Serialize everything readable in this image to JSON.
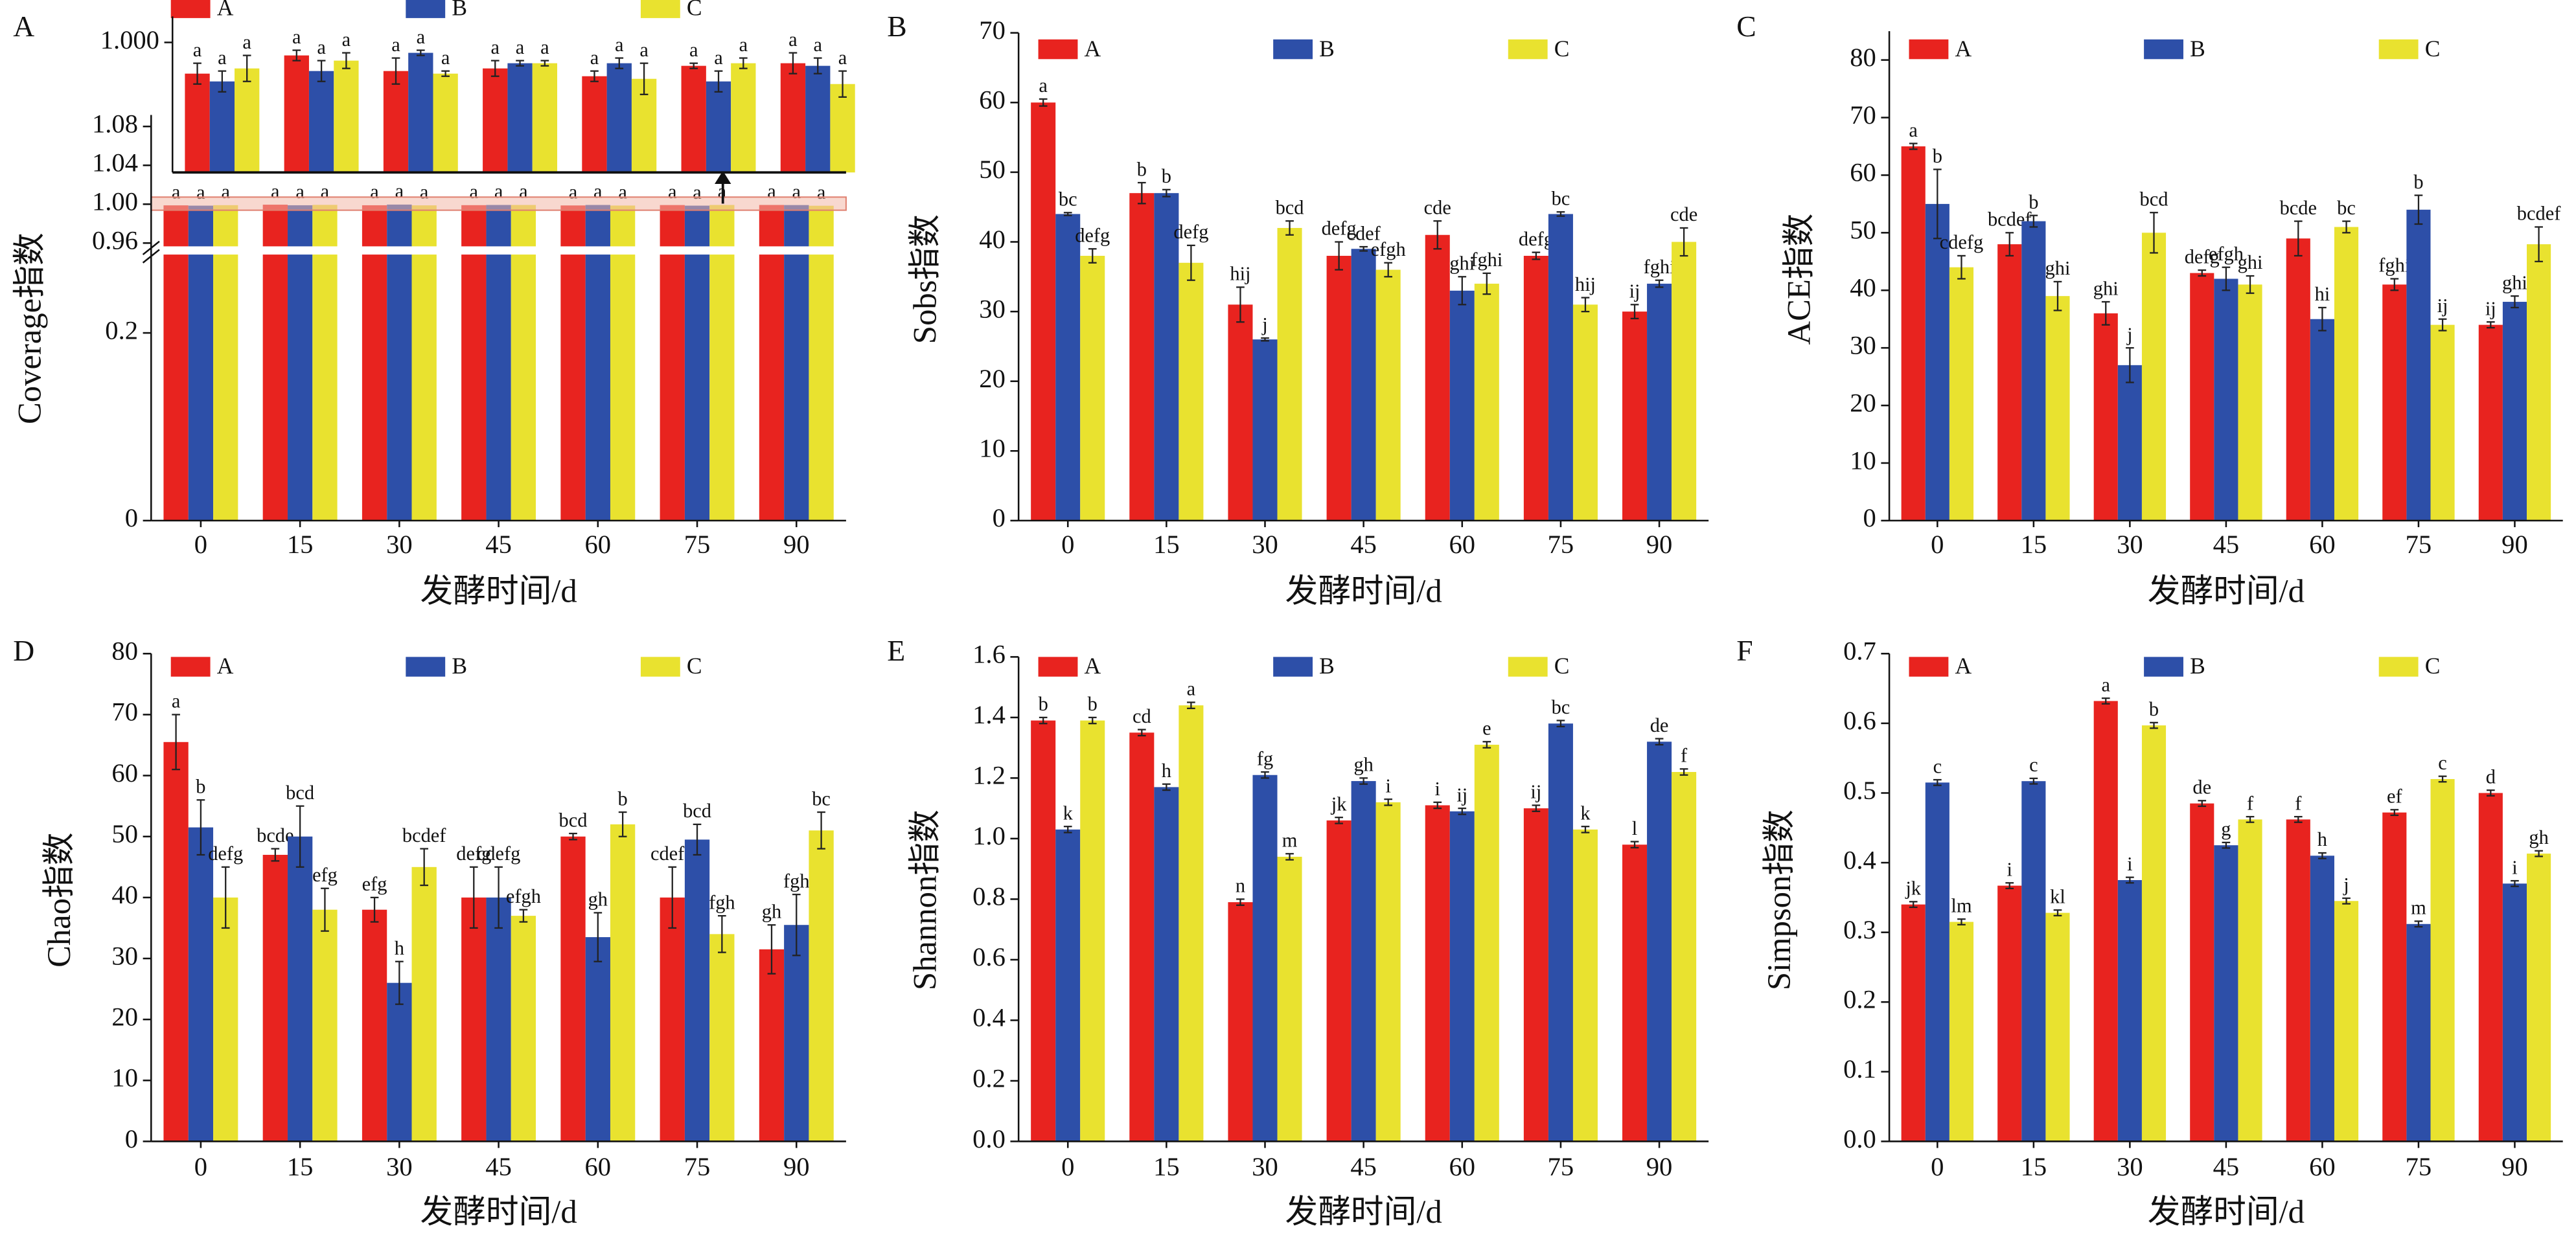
{
  "chart_data": [
    {
      "panel": "A",
      "type": "bar",
      "ylabel": "Coverage指数",
      "xlabel": "发酵时间/d",
      "categories": [
        "0",
        "15",
        "30",
        "45",
        "60",
        "75",
        "90"
      ],
      "ylim": [
        0,
        1.08
      ],
      "axis_break": [
        0.28,
        0.96
      ],
      "yticks": [
        0,
        0.2,
        0.96,
        {
          "value": 1,
          "label": "1.00"
        },
        1.04,
        1.08
      ],
      "inset": {
        "ylim": [
          0.995,
          1.001
        ],
        "yticks": [
          {
            "value": 1,
            "label": "1.000"
          }
        ]
      },
      "series": [
        {
          "name": "A",
          "color": "#e8231f",
          "values": [
            0.9988,
            0.9995,
            0.9989,
            0.999,
            0.9987,
            0.9991,
            0.9992
          ],
          "errors": [
            0.0004,
            0.0002,
            0.0005,
            0.0003,
            0.0002,
            0.0001,
            0.0004
          ],
          "labels": [
            "a",
            "a",
            "a",
            "a",
            "a",
            "a",
            "a"
          ]
        },
        {
          "name": "B",
          "color": "#2d4fa8",
          "values": [
            0.9985,
            0.9989,
            0.9996,
            0.9992,
            0.9992,
            0.9985,
            0.9991
          ],
          "errors": [
            0.0004,
            0.0004,
            0.0001,
            0.0001,
            0.0002,
            0.0004,
            0.0003
          ],
          "labels": [
            "a",
            "a",
            "a",
            "a",
            "a",
            "a",
            "a"
          ]
        },
        {
          "name": "C",
          "color": "#e9e22f",
          "values": [
            0.999,
            0.9993,
            0.9988,
            0.9992,
            0.9986,
            0.9992,
            0.9984
          ],
          "errors": [
            0.0005,
            0.0003,
            0.0001,
            0.0001,
            0.0006,
            0.0002,
            0.0005
          ],
          "labels": [
            "a",
            "a",
            "a",
            "a",
            "a",
            "a",
            "a"
          ]
        }
      ]
    },
    {
      "panel": "B",
      "type": "bar",
      "ylabel": "Sobs指数",
      "xlabel": "发酵时间/d",
      "categories": [
        "0",
        "15",
        "30",
        "45",
        "60",
        "75",
        "90"
      ],
      "ylim": [
        0,
        70
      ],
      "yticks": [
        0,
        10,
        20,
        30,
        40,
        50,
        60,
        70
      ],
      "series": [
        {
          "name": "A",
          "color": "#e8231f",
          "values": [
            60,
            47,
            31,
            38,
            41,
            38,
            30
          ],
          "errors": [
            0.5,
            1.5,
            2.5,
            2,
            2,
            0.5,
            1
          ],
          "labels": [
            "a",
            "b",
            "hij",
            "defg",
            "cde",
            "defg",
            "ij"
          ]
        },
        {
          "name": "B",
          "color": "#2d4fa8",
          "values": [
            44,
            47,
            26,
            39,
            33,
            44,
            34
          ],
          "errors": [
            0.2,
            0.5,
            0.2,
            0.3,
            2,
            0.3,
            0.5
          ],
          "labels": [
            "bc",
            "b",
            "j",
            "cdef",
            "ghi",
            "bc",
            "fghi"
          ]
        },
        {
          "name": "C",
          "color": "#e9e22f",
          "values": [
            38,
            37,
            42,
            36,
            34,
            31,
            40
          ],
          "errors": [
            1,
            2.5,
            1,
            1,
            1.5,
            1,
            2
          ],
          "labels": [
            "defg",
            "defg",
            "bcd",
            "efgh",
            "fghi",
            "hij",
            "cde"
          ]
        }
      ]
    },
    {
      "panel": "C",
      "type": "bar",
      "ylabel": "ACE指数",
      "xlabel": "发酵时间/d",
      "categories": [
        "0",
        "15",
        "30",
        "45",
        "60",
        "75",
        "90"
      ],
      "ylim": [
        0,
        85
      ],
      "yticks": [
        0,
        10,
        20,
        30,
        40,
        50,
        60,
        70,
        80
      ],
      "series": [
        {
          "name": "A",
          "color": "#e8231f",
          "values": [
            65,
            48,
            36,
            43,
            49,
            41,
            34
          ],
          "errors": [
            0.5,
            2,
            2,
            0.5,
            3,
            1,
            0.5
          ],
          "labels": [
            "a",
            "bcdef",
            "ghi",
            "defg",
            "bcde",
            "fghi",
            "ij"
          ]
        },
        {
          "name": "B",
          "color": "#2d4fa8",
          "values": [
            55,
            52,
            27,
            42,
            35,
            54,
            38
          ],
          "errors": [
            6,
            1,
            3,
            2,
            2,
            2.5,
            1
          ],
          "labels": [
            "b",
            "b",
            "j",
            "efgh",
            "hi",
            "b",
            "ghi"
          ]
        },
        {
          "name": "C",
          "color": "#e9e22f",
          "values": [
            44,
            39,
            50,
            41,
            51,
            34,
            48
          ],
          "errors": [
            2,
            2.5,
            3.5,
            1.5,
            1,
            1,
            3
          ],
          "labels": [
            "cdefg",
            "ghi",
            "bcd",
            "ghi",
            "bc",
            "ij",
            "bcdef"
          ]
        }
      ]
    },
    {
      "panel": "D",
      "type": "bar",
      "ylabel": "Chao指数",
      "xlabel": "发酵时间/d",
      "categories": [
        "0",
        "15",
        "30",
        "45",
        "60",
        "75",
        "90"
      ],
      "ylim": [
        0,
        80
      ],
      "yticks": [
        0,
        10,
        20,
        30,
        40,
        50,
        60,
        70,
        80
      ],
      "series": [
        {
          "name": "A",
          "color": "#e8231f",
          "values": [
            65.5,
            47,
            38,
            40,
            50,
            40,
            31.5
          ],
          "errors": [
            4.5,
            1,
            2,
            5,
            0.5,
            5,
            4
          ],
          "labels": [
            "a",
            "bcde",
            "efg",
            "defg",
            "bcd",
            "cdefg",
            "gh"
          ]
        },
        {
          "name": "B",
          "color": "#2d4fa8",
          "values": [
            51.5,
            50,
            26,
            40,
            33.5,
            49.5,
            35.5
          ],
          "errors": [
            4.5,
            5,
            3.5,
            5,
            4,
            2.5,
            5
          ],
          "labels": [
            "b",
            "bcd",
            "h",
            "cdefg",
            "gh",
            "bcd",
            "fgh"
          ]
        },
        {
          "name": "C",
          "color": "#e9e22f",
          "values": [
            40,
            38,
            45,
            37,
            52,
            34,
            51
          ],
          "errors": [
            5,
            3.5,
            3,
            1,
            2,
            3,
            3
          ],
          "labels": [
            "defg",
            "efg",
            "bcdef",
            "efgh",
            "b",
            "fgh",
            "bc"
          ]
        }
      ]
    },
    {
      "panel": "E",
      "type": "bar",
      "ylabel": "Shannon指数",
      "xlabel": "发酵时间/d",
      "categories": [
        "0",
        "15",
        "30",
        "45",
        "60",
        "75",
        "90"
      ],
      "ylim": [
        0,
        1.6
      ],
      "yticks": [
        {
          "value": 0,
          "label": "0.0"
        },
        0.2,
        0.4,
        0.6,
        0.8,
        {
          "value": 1,
          "label": "1.0"
        },
        1.2,
        1.4,
        1.6
      ],
      "series": [
        {
          "name": "A",
          "color": "#e8231f",
          "values": [
            1.39,
            1.35,
            0.79,
            1.06,
            1.11,
            1.1,
            0.98
          ],
          "errors": [
            0.01,
            0.01,
            0.01,
            0.01,
            0.01,
            0.01,
            0.01
          ],
          "labels": [
            "b",
            "cd",
            "n",
            "jk",
            "i",
            "ij",
            "l"
          ]
        },
        {
          "name": "B",
          "color": "#2d4fa8",
          "values": [
            1.03,
            1.17,
            1.21,
            1.19,
            1.09,
            1.38,
            1.32
          ],
          "errors": [
            0.01,
            0.01,
            0.01,
            0.01,
            0.01,
            0.01,
            0.01
          ],
          "labels": [
            "k",
            "h",
            "fg",
            "gh",
            "ij",
            "bc",
            "de"
          ]
        },
        {
          "name": "C",
          "color": "#e9e22f",
          "values": [
            1.39,
            1.44,
            0.94,
            1.12,
            1.31,
            1.03,
            1.22
          ],
          "errors": [
            0.01,
            0.01,
            0.01,
            0.01,
            0.01,
            0.01,
            0.01
          ],
          "labels": [
            "b",
            "a",
            "m",
            "i",
            "e",
            "k",
            "f"
          ]
        }
      ]
    },
    {
      "panel": "F",
      "type": "bar",
      "ylabel": "Simpson指数",
      "xlabel": "发酵时间/d",
      "categories": [
        "0",
        "15",
        "30",
        "45",
        "60",
        "75",
        "90"
      ],
      "ylim": [
        0,
        0.7
      ],
      "yticks": [
        {
          "value": 0,
          "label": "0.0"
        },
        0.1,
        0.2,
        0.3,
        0.4,
        0.5,
        0.6,
        0.7
      ],
      "series": [
        {
          "name": "A",
          "color": "#e8231f",
          "values": [
            0.34,
            0.367,
            0.632,
            0.485,
            0.462,
            0.472,
            0.5
          ],
          "errors": [
            0.004,
            0.004,
            0.004,
            0.004,
            0.004,
            0.004,
            0.004
          ],
          "labels": [
            "jk",
            "i",
            "a",
            "de",
            "f",
            "ef",
            "d"
          ]
        },
        {
          "name": "B",
          "color": "#2d4fa8",
          "values": [
            0.515,
            0.517,
            0.375,
            0.425,
            0.41,
            0.312,
            0.37
          ],
          "errors": [
            0.004,
            0.004,
            0.004,
            0.004,
            0.004,
            0.004,
            0.004
          ],
          "labels": [
            "c",
            "c",
            "i",
            "g",
            "h",
            "m",
            "i"
          ]
        },
        {
          "name": "C",
          "color": "#e9e22f",
          "values": [
            0.315,
            0.328,
            0.597,
            0.462,
            0.345,
            0.52,
            0.413
          ],
          "errors": [
            0.004,
            0.004,
            0.004,
            0.004,
            0.004,
            0.004,
            0.004
          ],
          "labels": [
            "lm",
            "kl",
            "b",
            "f",
            "j",
            "c",
            "gh"
          ]
        }
      ]
    }
  ]
}
